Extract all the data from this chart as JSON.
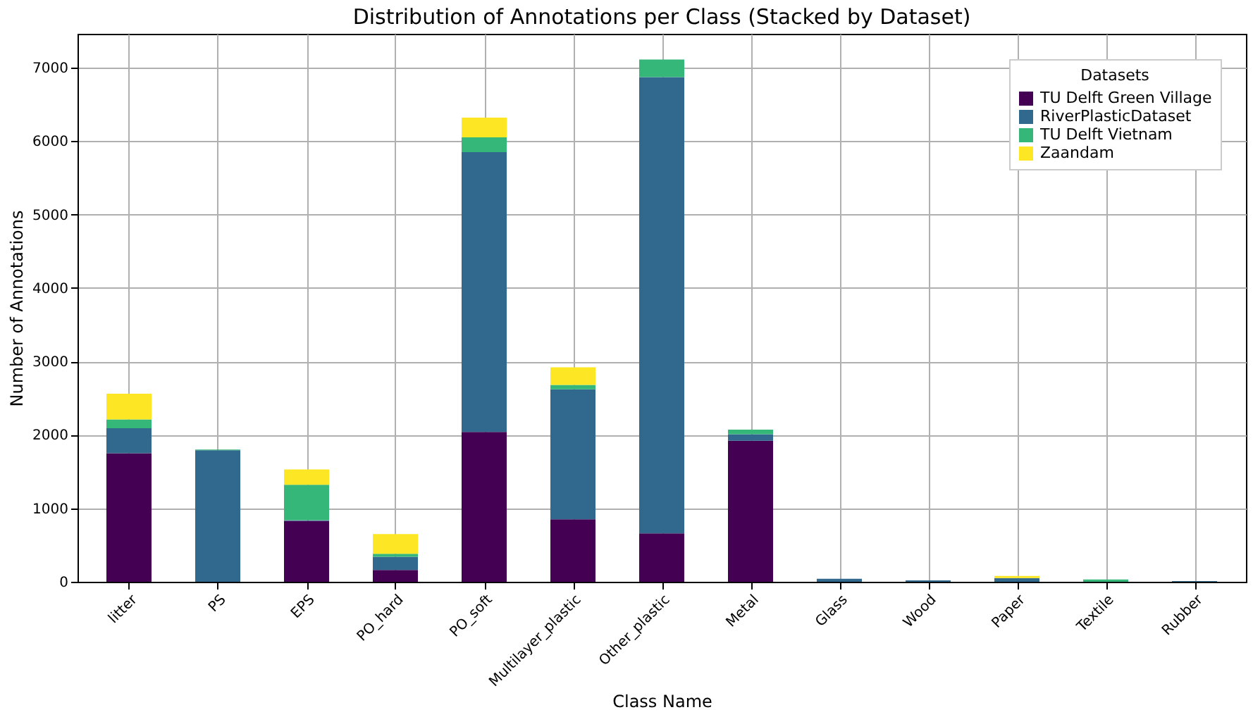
{
  "chart_data": {
    "type": "bar",
    "title": "Distribution of Annotations per Class (Stacked by Dataset)",
    "xlabel": "Class Name",
    "ylabel": "Number of Annotations",
    "legend_title": "Datasets",
    "stacked": true,
    "grid": true,
    "legend": "top right",
    "categories": [
      "litter",
      "PS",
      "EPS",
      "PO_hard",
      "PO_soft",
      "Multilayer_plastic",
      "Other_plastic",
      "Metal",
      "Glass",
      "Wood",
      "Paper",
      "Textile",
      "Rubber"
    ],
    "series": [
      {
        "name": "TU Delft Green Village",
        "color": "#440154",
        "values": [
          1750,
          0,
          830,
          160,
          2040,
          850,
          660,
          1920,
          0,
          0,
          0,
          0,
          0
        ]
      },
      {
        "name": "RiverPlasticDataset",
        "color": "#31688e",
        "values": [
          340,
          1790,
          10,
          180,
          3810,
          1770,
          6210,
          90,
          40,
          20,
          50,
          0,
          10
        ]
      },
      {
        "name": "TU Delft Vietnam",
        "color": "#35b779",
        "values": [
          120,
          10,
          480,
          40,
          200,
          60,
          240,
          60,
          0,
          0,
          0,
          30,
          0
        ]
      },
      {
        "name": "Zaandam",
        "color": "#fde725",
        "values": [
          350,
          0,
          210,
          270,
          270,
          240,
          0,
          0,
          0,
          0,
          30,
          0,
          0
        ]
      }
    ],
    "ylim": [
      0,
      7460
    ],
    "yticks": [
      0,
      1000,
      2000,
      3000,
      4000,
      5000,
      6000,
      7000
    ]
  }
}
